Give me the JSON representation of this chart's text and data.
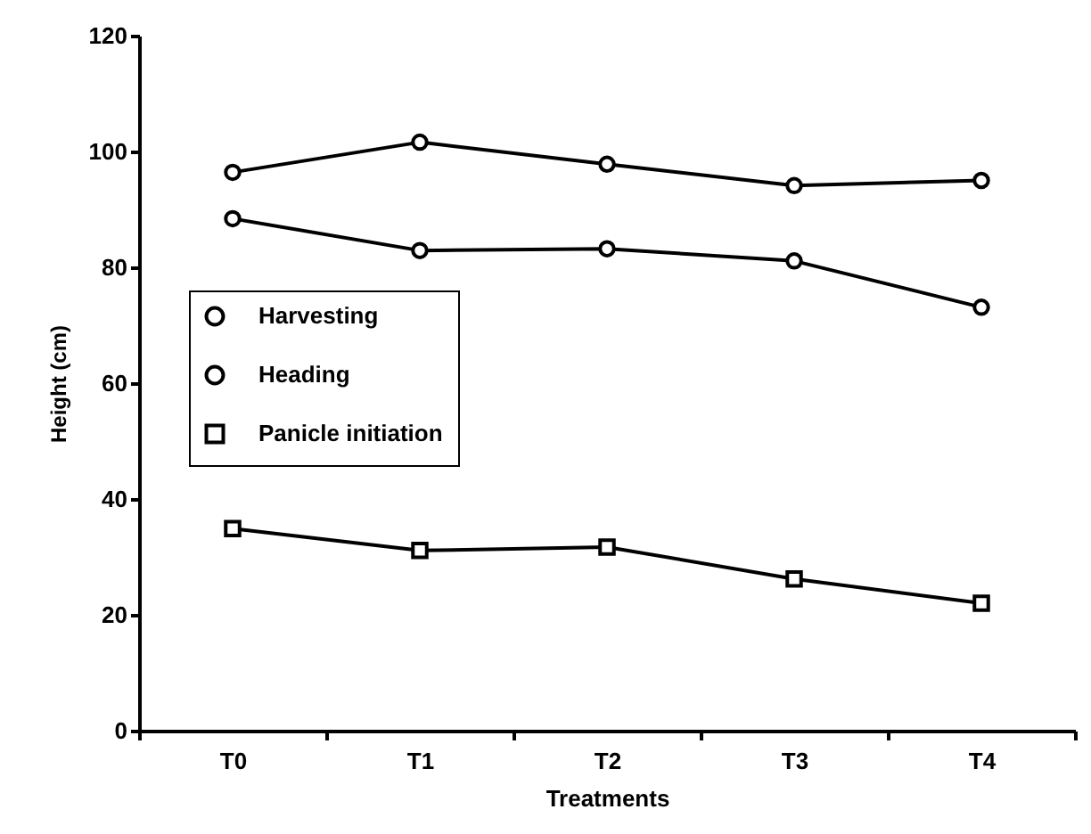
{
  "chart_data": {
    "type": "line",
    "xlabel": "Treatments",
    "ylabel": "Height (cm)",
    "categories": [
      "T0",
      "T1",
      "T2",
      "T3",
      "T4"
    ],
    "series": [
      {
        "name": "Harvesting",
        "color": "#000000",
        "marker": "circle",
        "values": [
          96.4,
          101.6,
          97.8,
          94.1,
          95.0
        ]
      },
      {
        "name": "Heading",
        "color": "#000000",
        "marker": "circle",
        "values": [
          88.4,
          82.9,
          83.2,
          81.1,
          73.1
        ]
      },
      {
        "name": "Panicle initiation",
        "color": "#000000",
        "marker": "square",
        "values": [
          34.9,
          31.1,
          31.7,
          26.2,
          22.0
        ]
      }
    ],
    "ylim": [
      0,
      120
    ],
    "yticks": [
      0,
      20,
      40,
      60,
      80,
      100,
      120
    ],
    "grid": false,
    "legend": "left",
    "line_style": "solid"
  }
}
